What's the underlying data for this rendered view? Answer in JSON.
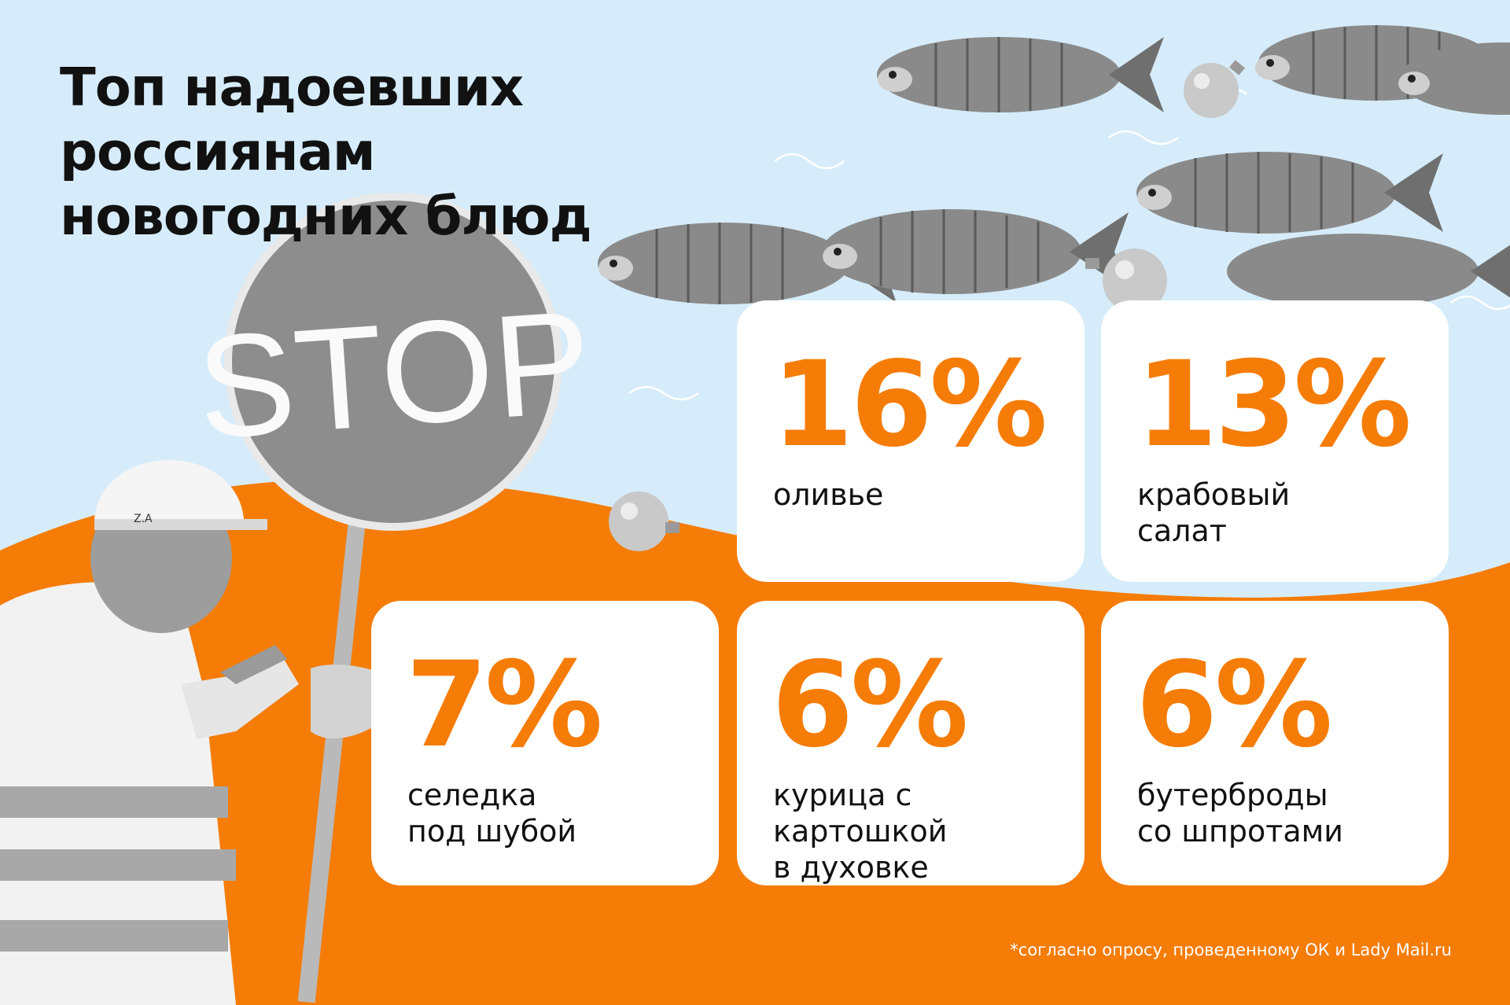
{
  "title": {
    "line1": "Топ надоевших россиянам",
    "line2": "новогодних блюд"
  },
  "stop_sign_text": "STOP",
  "helmet_text": "Z.A",
  "cards": [
    {
      "percent": "16%",
      "label_line1": "оливье",
      "label_line2": ""
    },
    {
      "percent": "13%",
      "label_line1": "крабовый",
      "label_line2": "салат"
    },
    {
      "percent": "7%",
      "label_line1": "селедка",
      "label_line2": "под шубой"
    },
    {
      "percent": "6%",
      "label_line1": "курица с картошкой",
      "label_line2": "в духовке"
    },
    {
      "percent": "6%",
      "label_line1": "бутерброды",
      "label_line2": "со шпротами"
    }
  ],
  "footnote": "*согласно опросу, проведенному ОК и Lady Mail.ru",
  "colors": {
    "sky": "#d6ecfa",
    "accent_orange": "#f57c06",
    "card_bg": "#ffffff",
    "text": "#111111"
  }
}
